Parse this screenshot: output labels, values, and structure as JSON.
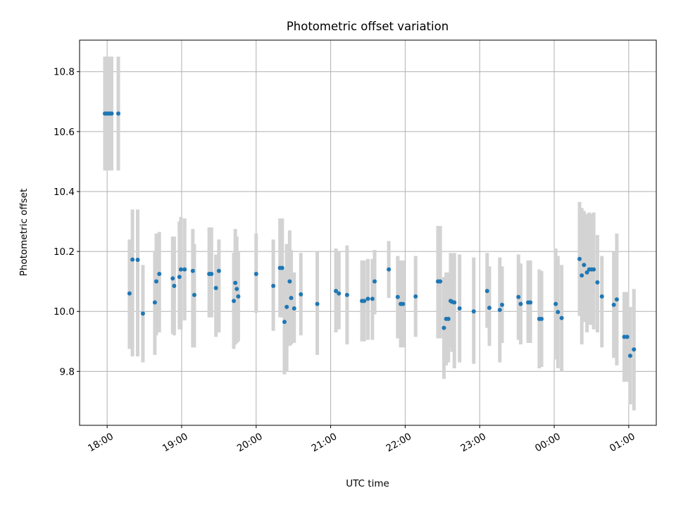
{
  "chart_data": {
    "type": "scatter",
    "title": "Photometric offset variation",
    "xlabel": "UTC time",
    "ylabel": "Photometric offset",
    "x_is_time": true,
    "x_start_label": "18:00",
    "xlim_hours": [
      -0.37,
      7.37
    ],
    "ylim": [
      9.62,
      10.905
    ],
    "x_ticks": [
      {
        "hour": 0,
        "label": "18:00"
      },
      {
        "hour": 1,
        "label": "19:00"
      },
      {
        "hour": 2,
        "label": "20:00"
      },
      {
        "hour": 3,
        "label": "21:00"
      },
      {
        "hour": 4,
        "label": "22:00"
      },
      {
        "hour": 5,
        "label": "23:00"
      },
      {
        "hour": 6,
        "label": "00:00"
      },
      {
        "hour": 7,
        "label": "01:00"
      }
    ],
    "y_ticks": [
      {
        "value": 9.8,
        "label": "9.8"
      },
      {
        "value": 10.0,
        "label": "10.0"
      },
      {
        "value": 10.2,
        "label": "10.2"
      },
      {
        "value": 10.4,
        "label": "10.4"
      },
      {
        "value": 10.6,
        "label": "10.6"
      },
      {
        "value": 10.8,
        "label": "10.8"
      }
    ],
    "grid": true,
    "marker_color": "#1f77b4",
    "errorbar_color": "#d3d3d3",
    "series": [
      {
        "x": [
          -0.03,
          0.0,
          0.03,
          0.06,
          0.15,
          0.3,
          0.34,
          0.41,
          0.48,
          0.64,
          0.66,
          0.7,
          0.88,
          0.9,
          0.97,
          0.99,
          1.04,
          1.15,
          1.17,
          1.37,
          1.4,
          1.46,
          1.5,
          1.7,
          1.72,
          1.74,
          1.76,
          2.0,
          2.23,
          2.32,
          2.35,
          2.38,
          2.41,
          2.45,
          2.47,
          2.51,
          2.6,
          2.82,
          3.07,
          3.11,
          3.22,
          3.42,
          3.45,
          3.5,
          3.56,
          3.59,
          3.78,
          3.9,
          3.94,
          3.97,
          4.14,
          4.44,
          4.47,
          4.52,
          4.55,
          4.58,
          4.61,
          4.63,
          4.66,
          4.73,
          4.92,
          5.1,
          5.13,
          5.27,
          5.3,
          5.52,
          5.55,
          5.65,
          5.68,
          5.8,
          5.83,
          6.02,
          6.05,
          6.1,
          6.34,
          6.37,
          6.4,
          6.44,
          6.47,
          6.5,
          6.53,
          6.58,
          6.64,
          6.8,
          6.84,
          6.94,
          6.98,
          7.02,
          7.07
        ],
        "y": [
          10.66,
          10.66,
          10.66,
          10.66,
          10.66,
          10.06,
          10.173,
          10.172,
          9.993,
          10.03,
          10.1,
          10.125,
          10.11,
          10.085,
          10.115,
          10.14,
          10.14,
          10.135,
          10.055,
          10.125,
          10.125,
          10.078,
          10.135,
          10.035,
          10.095,
          10.075,
          10.05,
          10.125,
          10.085,
          10.145,
          10.145,
          9.965,
          10.015,
          10.1,
          10.045,
          10.01,
          10.057,
          10.025,
          10.068,
          10.06,
          10.055,
          10.035,
          10.035,
          10.042,
          10.042,
          10.1,
          10.14,
          10.048,
          10.025,
          10.025,
          10.05,
          10.1,
          10.1,
          9.945,
          9.975,
          9.975,
          10.035,
          10.032,
          10.03,
          10.01,
          10.0,
          10.068,
          10.012,
          10.005,
          10.022,
          10.048,
          10.025,
          10.03,
          10.03,
          9.975,
          9.975,
          10.025,
          9.998,
          9.978,
          10.175,
          10.12,
          10.155,
          10.13,
          10.14,
          10.14,
          10.14,
          10.097,
          10.05,
          10.022,
          10.04,
          9.915,
          9.915,
          9.852,
          9.873
        ],
        "err_low": [
          10.47,
          10.47,
          10.47,
          10.47,
          10.47,
          9.875,
          9.85,
          9.85,
          9.83,
          9.855,
          9.92,
          9.93,
          9.925,
          9.92,
          9.94,
          9.94,
          9.97,
          9.88,
          9.88,
          9.98,
          9.98,
          9.915,
          9.93,
          9.875,
          9.89,
          9.895,
          9.9,
          9.995,
          9.935,
          9.98,
          9.98,
          9.79,
          9.8,
          9.885,
          9.89,
          9.895,
          9.92,
          9.855,
          9.93,
          9.94,
          9.89,
          9.9,
          9.9,
          9.905,
          9.905,
          9.99,
          10.045,
          9.91,
          9.88,
          9.88,
          9.915,
          9.91,
          9.91,
          9.775,
          9.82,
          9.83,
          9.88,
          9.865,
          9.81,
          9.83,
          9.825,
          9.945,
          9.885,
          9.83,
          9.895,
          9.905,
          9.89,
          9.895,
          9.895,
          9.81,
          9.815,
          9.84,
          9.81,
          9.8,
          9.985,
          9.89,
          9.965,
          9.93,
          9.955,
          9.955,
          9.94,
          9.93,
          9.88,
          9.845,
          9.82,
          9.765,
          9.765,
          9.69,
          9.67
        ],
        "err_high": [
          10.85,
          10.85,
          10.85,
          10.85,
          10.85,
          10.24,
          10.34,
          10.34,
          10.155,
          10.2,
          10.26,
          10.265,
          10.25,
          10.25,
          10.3,
          10.315,
          10.31,
          10.275,
          10.225,
          10.28,
          10.28,
          10.19,
          10.24,
          10.195,
          10.275,
          10.25,
          10.2,
          10.26,
          10.24,
          10.31,
          10.31,
          10.14,
          10.225,
          10.27,
          10.205,
          10.13,
          10.195,
          10.2,
          10.21,
          10.2,
          10.22,
          10.17,
          10.17,
          10.175,
          10.175,
          10.205,
          10.235,
          10.185,
          10.17,
          10.17,
          10.185,
          10.285,
          10.285,
          10.115,
          10.13,
          10.13,
          10.195,
          10.19,
          10.195,
          10.19,
          10.18,
          10.195,
          10.15,
          10.18,
          10.15,
          10.19,
          10.16,
          10.17,
          10.17,
          10.14,
          10.135,
          10.21,
          10.185,
          10.155,
          10.365,
          10.345,
          10.335,
          10.325,
          10.33,
          10.325,
          10.33,
          10.255,
          10.185,
          10.2,
          10.26,
          10.065,
          10.065,
          10.015,
          10.075
        ]
      }
    ]
  }
}
